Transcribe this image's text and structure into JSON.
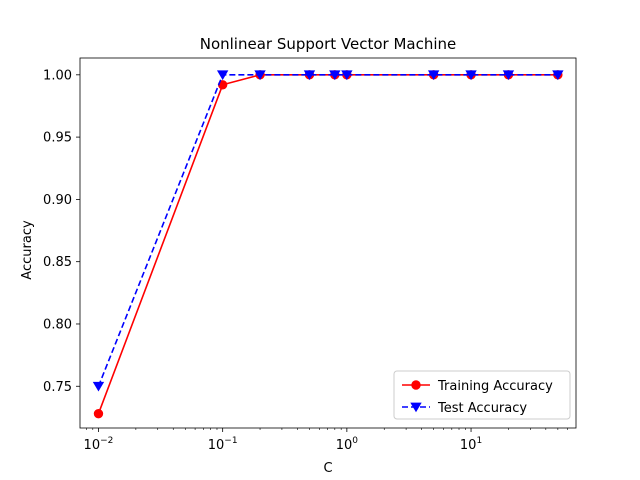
{
  "chart_data": {
    "type": "line",
    "title": "Nonlinear Support Vector Machine",
    "xlabel": "C",
    "ylabel": "Accuracy",
    "xscale": "log",
    "xlim": [
      0.0071,
      70
    ],
    "ylim": [
      0.7165,
      1.0135
    ],
    "grid": false,
    "legend_position": "lower-right",
    "x_tick_labels": [
      {
        "value": 0.01,
        "base": "10",
        "exp": "−2"
      },
      {
        "value": 0.1,
        "base": "10",
        "exp": "−1"
      },
      {
        "value": 1,
        "base": "10",
        "exp": "0"
      },
      {
        "value": 10,
        "base": "10",
        "exp": "1"
      }
    ],
    "y_ticks": [
      0.75,
      0.8,
      0.85,
      0.9,
      0.95,
      1.0
    ],
    "y_tick_labels": [
      "0.75",
      "0.80",
      "0.85",
      "0.90",
      "0.95",
      "1.00"
    ],
    "x": [
      0.01,
      0.1,
      0.2,
      0.5,
      0.8,
      1,
      5,
      10,
      20,
      50
    ],
    "series": [
      {
        "name": "Training Accuracy",
        "color": "#ff0000",
        "linestyle": "solid",
        "marker": "circle",
        "values": [
          0.728,
          0.992,
          1.0,
          1.0,
          1.0,
          1.0,
          1.0,
          1.0,
          1.0,
          1.0
        ]
      },
      {
        "name": "Test Accuracy",
        "color": "#0000ff",
        "linestyle": "dashed",
        "marker": "triangle-down",
        "values": [
          0.75,
          1.0,
          1.0,
          1.0,
          1.0,
          1.0,
          1.0,
          1.0,
          1.0,
          1.0
        ]
      }
    ]
  }
}
